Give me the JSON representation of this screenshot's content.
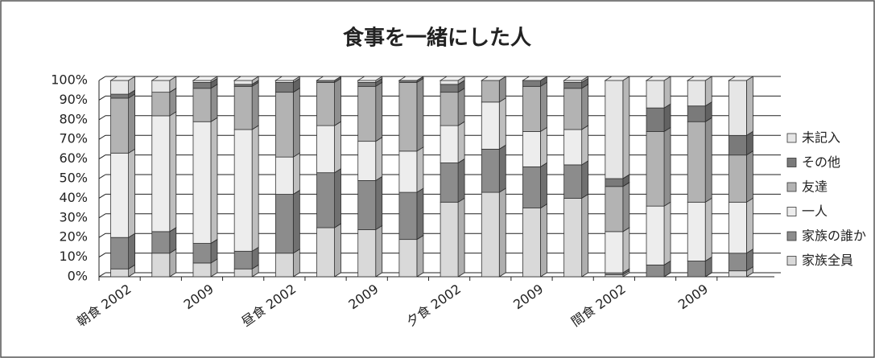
{
  "chart_data": {
    "type": "stacked_bar_100",
    "title": "食事を一緒にした人",
    "categories": [
      "朝食 2002",
      null,
      "2009",
      null,
      "昼食 2002",
      null,
      "2009",
      null,
      "夕食 2002",
      null,
      "2009",
      null,
      "間食 2002",
      null,
      "2009",
      null
    ],
    "series": [
      {
        "name": "家族全員",
        "color": "#d9d9d9",
        "values": [
          4,
          12,
          7,
          4,
          12,
          25,
          24,
          19,
          38,
          43,
          35,
          40,
          1,
          0,
          0,
          3
        ]
      },
      {
        "name": "家族の誰か",
        "color": "#8c8c8c",
        "values": [
          16,
          11,
          10,
          9,
          30,
          28,
          25,
          24,
          20,
          22,
          21,
          17,
          1,
          6,
          8,
          9
        ]
      },
      {
        "name": "一人",
        "color": "#ededed",
        "values": [
          43,
          59,
          62,
          62,
          19,
          24,
          20,
          21,
          19,
          24,
          18,
          18,
          21,
          30,
          30,
          26
        ]
      },
      {
        "name": "友達",
        "color": "#b3b3b3",
        "values": [
          28,
          12,
          17,
          22,
          33,
          22,
          28,
          35,
          17,
          11,
          23,
          21,
          23,
          38,
          41,
          24
        ]
      },
      {
        "name": "その他",
        "color": "#7a7a7a",
        "values": [
          2,
          0,
          3,
          1,
          5,
          1,
          2,
          1,
          4,
          0,
          3,
          3,
          4,
          12,
          8,
          10
        ]
      },
      {
        "name": "未記入",
        "color": "#e6e6e6",
        "values": [
          7,
          6,
          1,
          2,
          1,
          0,
          1,
          0,
          2,
          0,
          0,
          1,
          50,
          14,
          13,
          28
        ]
      }
    ],
    "ylim": [
      0,
      100
    ],
    "yticks": [
      {
        "value": 0,
        "label": "0%"
      },
      {
        "value": 10,
        "label": "10%"
      },
      {
        "value": 20,
        "label": "20%"
      },
      {
        "value": 30,
        "label": "30%"
      },
      {
        "value": 40,
        "label": "40%"
      },
      {
        "value": 50,
        "label": "50%"
      },
      {
        "value": 60,
        "label": "60%"
      },
      {
        "value": 70,
        "label": "70%"
      },
      {
        "value": 80,
        "label": "80%"
      },
      {
        "value": 90,
        "label": "90%"
      },
      {
        "value": 100,
        "label": "100%"
      }
    ],
    "grid": true
  }
}
